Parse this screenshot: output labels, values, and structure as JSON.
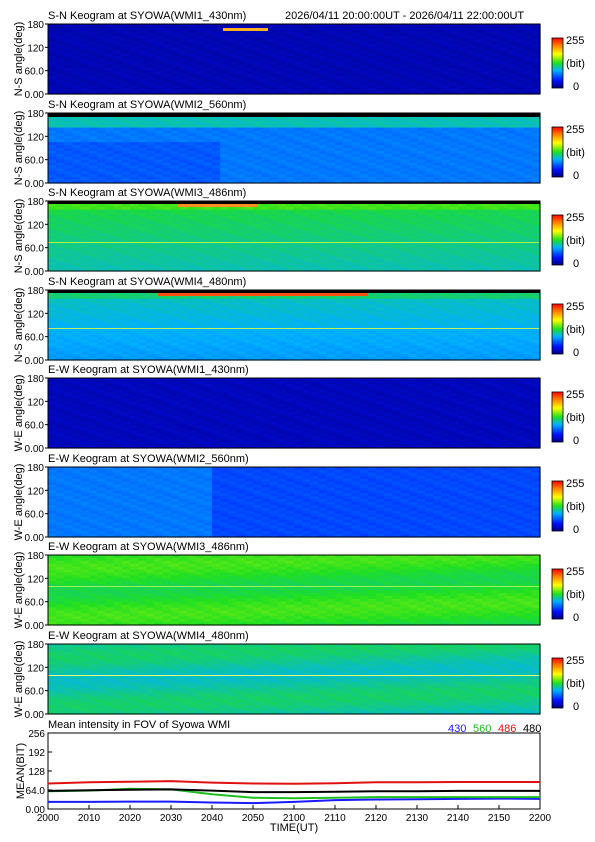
{
  "header": {
    "time_range": "2026/04/11 20:00:00UT - 2026/04/11 22:00:00UT"
  },
  "keograms": [
    {
      "title": "S-N Keogram at SYOWA(WMI1_430nm)",
      "ylabel": "N-S angle(deg)",
      "yticks": [
        "180",
        "120",
        "60.0",
        "0.00"
      ],
      "cbar_max": "255",
      "cbar_unit": "(bit)",
      "cbar_min": "0",
      "base_level": 0.06,
      "feature": "bright red-yellow aurora streak near top edge around 20:50 UT"
    },
    {
      "title": "S-N Keogram at SYOWA(WMI2_560nm)",
      "ylabel": "N-S angle(deg)",
      "yticks": [
        "180",
        "120",
        "60.0",
        "0.00"
      ],
      "cbar_max": "255",
      "cbar_unit": "(bit)",
      "cbar_min": "0",
      "base_level": 0.28,
      "feature": "greenish band near top edge, blue lower region"
    },
    {
      "title": "S-N Keogram at SYOWA(WMI3_486nm)",
      "ylabel": "N-S angle(deg)",
      "yticks": [
        "180",
        "120",
        "60.0",
        "0.00"
      ],
      "cbar_max": "255",
      "cbar_unit": "(bit)",
      "cbar_min": "0",
      "base_level": 0.48,
      "feature": "green field with orange streak near top edge around 20:40 UT"
    },
    {
      "title": "S-N Keogram at SYOWA(WMI4_480nm)",
      "ylabel": "N-S angle(deg)",
      "yticks": [
        "180",
        "120",
        "60.0",
        "0.00"
      ],
      "cbar_max": "255",
      "cbar_unit": "(bit)",
      "cbar_min": "0",
      "base_level": 0.4,
      "feature": "green-blue field with red-orange streak near top edge"
    },
    {
      "title": "E-W Keogram at SYOWA(WMI1_430nm)",
      "ylabel": "W-E angle(deg)",
      "yticks": [
        "180",
        "120",
        "60.0",
        "0.00"
      ],
      "cbar_max": "255",
      "cbar_unit": "(bit)",
      "cbar_min": "0",
      "base_level": 0.07,
      "feature": "uniform dark blue"
    },
    {
      "title": "E-W Keogram at SYOWA(WMI2_560nm)",
      "ylabel": "W-E angle(deg)",
      "yticks": [
        "180",
        "120",
        "60.0",
        "0.00"
      ],
      "cbar_max": "255",
      "cbar_unit": "(bit)",
      "cbar_min": "0",
      "base_level": 0.24,
      "feature": "blue field, lighter before 20:30 UT"
    },
    {
      "title": "E-W Keogram at SYOWA(WMI3_486nm)",
      "ylabel": "W-E angle(deg)",
      "yticks": [
        "180",
        "120",
        "60.0",
        "0.00"
      ],
      "cbar_max": "255",
      "cbar_unit": "(bit)",
      "cbar_min": "0",
      "base_level": 0.5,
      "feature": "green field with faint horizontal lines"
    },
    {
      "title": "E-W Keogram at SYOWA(WMI4_480nm)",
      "ylabel": "W-E angle(deg)",
      "yticks": [
        "180",
        "120",
        "60.0",
        "0.00"
      ],
      "cbar_max": "255",
      "cbar_unit": "(bit)",
      "cbar_min": "0",
      "base_level": 0.42,
      "feature": "green field with bright thin line near 100 deg"
    }
  ],
  "colors": {
    "line_430": "#1a1aff",
    "line_560": "#1fbf1f",
    "line_486": "#e01010",
    "line_480": "#000000"
  },
  "chart_data": {
    "type": "line",
    "title": "Mean intensity in FOV of Syowa WMI",
    "xlabel": "TIME(UT)",
    "ylabel": "MEAN(BIT)",
    "x_ticks": [
      "2000",
      "2010",
      "2020",
      "2030",
      "2040",
      "2050",
      "2100",
      "2110",
      "2120",
      "2130",
      "2140",
      "2150",
      "2200"
    ],
    "y_ticks": [
      "256",
      "192",
      "128",
      "64.0",
      "0.00"
    ],
    "ylim": [
      0,
      256
    ],
    "x_minutes_from_2000": [
      0,
      10,
      20,
      30,
      40,
      50,
      60,
      70,
      80,
      90,
      100,
      110,
      120
    ],
    "legend": [
      "430",
      "560",
      "486",
      "480"
    ],
    "series": [
      {
        "name": "430",
        "color": "#1a1aff",
        "values": [
          24,
          24,
          25,
          25,
          22,
          20,
          24,
          30,
          32,
          33,
          34,
          35,
          34
        ]
      },
      {
        "name": "560",
        "color": "#1fbf1f",
        "values": [
          60,
          62,
          68,
          66,
          50,
          38,
          36,
          38,
          40,
          40,
          40,
          40,
          40
        ]
      },
      {
        "name": "486",
        "color": "#e01010",
        "values": [
          86,
          90,
          92,
          94,
          89,
          86,
          85,
          87,
          90,
          90,
          91,
          91,
          91
        ]
      },
      {
        "name": "480",
        "color": "#000000",
        "values": [
          61,
          63,
          65,
          66,
          62,
          57,
          57,
          58,
          60,
          60,
          61,
          61,
          61
        ]
      }
    ]
  }
}
